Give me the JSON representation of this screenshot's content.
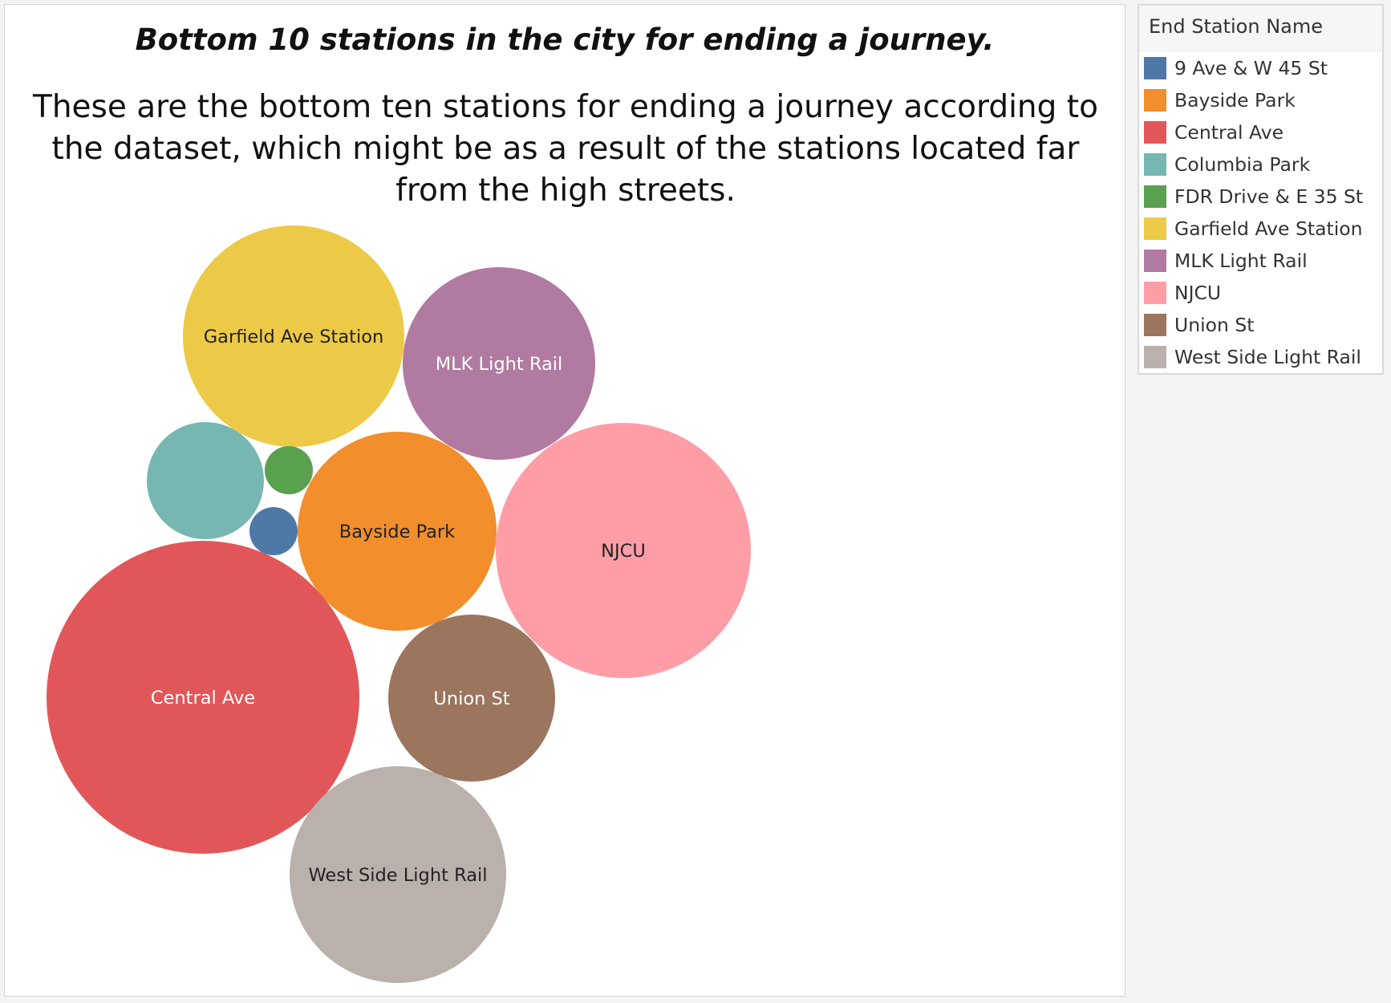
{
  "title": "Bottom 10 stations in the city for ending a journey.",
  "subtitle": "These are the bottom ten stations for ending a journey according to the dataset, which might be as a result of the stations located far from the high streets.",
  "legend": {
    "title": "End Station Name",
    "items": [
      {
        "label": "9 Ave & W 45 St",
        "color": "#4e79a7"
      },
      {
        "label": "Bayside Park",
        "color": "#f28e2b"
      },
      {
        "label": "Central Ave",
        "color": "#e15759"
      },
      {
        "label": "Columbia Park",
        "color": "#76b7b2"
      },
      {
        "label": "FDR Drive & E 35 St",
        "color": "#59a14f"
      },
      {
        "label": "Garfield Ave Station",
        "color": "#edc948"
      },
      {
        "label": "MLK Light Rail",
        "color": "#b07aa1"
      },
      {
        "label": "NJCU",
        "color": "#ff9da7"
      },
      {
        "label": "Union St",
        "color": "#9c755f"
      },
      {
        "label": "West Side Light Rail",
        "color": "#bab0ac"
      }
    ]
  },
  "chart_data": {
    "type": "packed-bubble",
    "title": "Bottom 10 stations in the city for ending a journey.",
    "legend_placement": "right",
    "bubbles": [
      {
        "name": "Garfield Ave Station",
        "label": "Garfield Ave Station",
        "color": "#edc948",
        "label_color": "#222222"
      },
      {
        "name": "MLK Light Rail",
        "label": "MLK Light Rail",
        "color": "#b07aa1",
        "label_color": "#ffffff"
      },
      {
        "name": "Columbia Park",
        "label": "",
        "color": "#76b7b2",
        "label_color": "#222222"
      },
      {
        "name": "FDR Drive & E 35 St",
        "label": "",
        "color": "#59a14f",
        "label_color": "#222222"
      },
      {
        "name": "9 Ave & W 45 St",
        "label": "",
        "color": "#4e79a7",
        "label_color": "#ffffff"
      },
      {
        "name": "Bayside Park",
        "label": "Bayside Park",
        "color": "#f28e2b",
        "label_color": "#222222"
      },
      {
        "name": "NJCU",
        "label": "NJCU",
        "color": "#ff9da7",
        "label_color": "#222222"
      },
      {
        "name": "Central Ave",
        "label": "Central Ave",
        "color": "#e15759",
        "label_color": "#ffffff"
      },
      {
        "name": "Union St",
        "label": "Union St",
        "color": "#9c755f",
        "label_color": "#ffffff"
      },
      {
        "name": "West Side Light Rail",
        "label": "West Side Light Rail",
        "color": "#bab0ac",
        "label_color": "#222222"
      }
    ]
  }
}
